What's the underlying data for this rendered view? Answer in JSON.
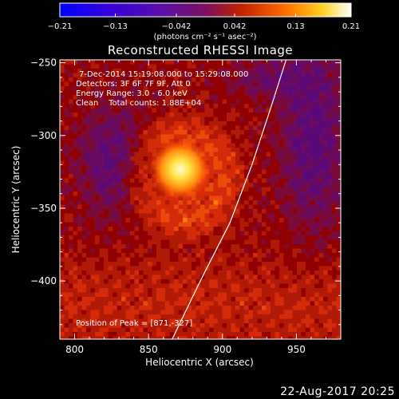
{
  "chart_data": {
    "type": "heatmap",
    "title": "Reconstructed RHESSI Image",
    "xlabel": "Heliocentric X (arcsec)",
    "ylabel": "Heliocentric Y (arcsec)",
    "xlim": [
      790,
      980
    ],
    "ylim": [
      -440,
      -248
    ],
    "x_ticks": [
      800,
      850,
      900,
      950
    ],
    "y_ticks": [
      -400,
      -350,
      -300,
      -250
    ],
    "colorbar": {
      "range": [
        -0.21,
        0.21
      ],
      "ticks": [
        -0.21,
        -0.13,
        -0.042,
        0.042,
        0.13,
        0.21
      ],
      "tick_labels": [
        "−0.21",
        "−0.13",
        "−0.042",
        "0.042",
        "0.13",
        "0.21"
      ],
      "label": "(photons cm⁻² s⁻¹ asec⁻²)"
    },
    "annotations": [
      "7-Dec-2014 15:19:08.000 to 15:29:08.000",
      "Detectors: 3F 6F 7F 9F, Att 0",
      "Energy Range: 3.0 - 6.0 keV",
      "Clean    Total counts: 1.88E+04"
    ],
    "peak_label": "Position of Peak = [871,-327]",
    "peak": {
      "x": 871,
      "y": -327
    },
    "limb_line": [
      [
        866,
        -440
      ],
      [
        885,
        -400
      ],
      [
        905,
        -360
      ],
      [
        920,
        -320
      ],
      [
        933,
        -280
      ],
      [
        943,
        -248
      ]
    ],
    "colors": {
      "positive_high": "#fff7a0",
      "positive_mid": "#ff7a10",
      "positive_low": "#d42a0a",
      "zero": "#900000",
      "negative": "#5a0a78"
    }
  },
  "footer": {
    "date": "22-Aug-2017 20:25"
  }
}
